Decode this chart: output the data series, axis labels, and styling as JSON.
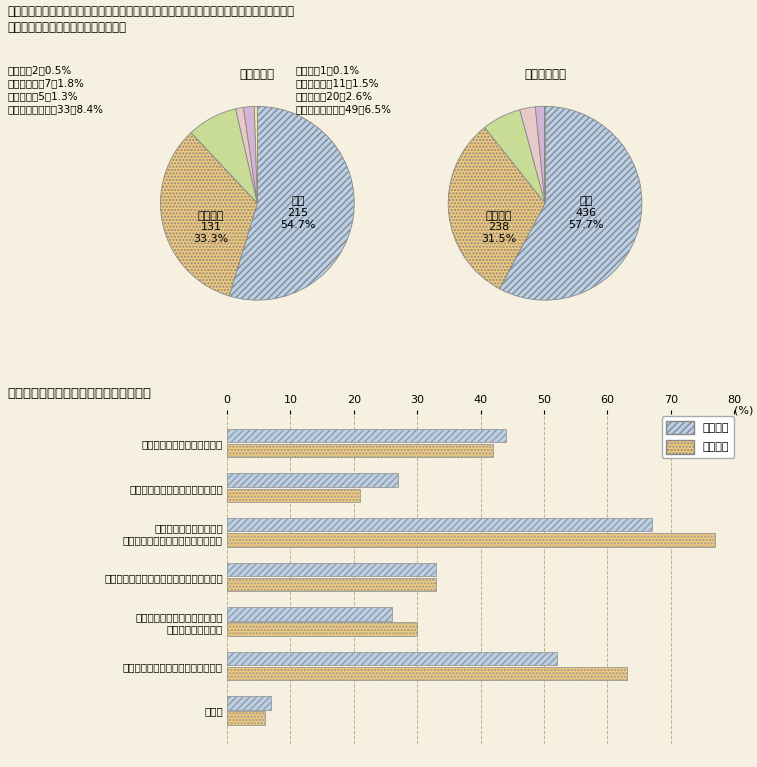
{
  "title_line1": "女性の登用を進めるに当たって、育児休業中の職員及び育児休業から復帰した職員に対して",
  "title_line2": "何らかの配慮が必要だと思いますか。",
  "pie1_title": "（管理職）",
  "pie2_title": "（女性職員）",
  "pie1_values": [
    54.7,
    33.3,
    8.4,
    1.3,
    1.8,
    0.5
  ],
  "pie1_counts": [
    215,
    131,
    33,
    5,
    7,
    2
  ],
  "pie1_pcts": [
    "54.7%",
    "33.3%",
    "8.4%",
    "1.3%",
    "1.8%",
    "0.5%"
  ],
  "pie2_values": [
    57.7,
    31.5,
    6.5,
    2.6,
    1.5,
    0.1
  ],
  "pie2_counts": [
    436,
    238,
    49,
    20,
    11,
    1
  ],
  "pie2_pcts": [
    "57.7%",
    "31.5%",
    "6.5%",
    "2.6%",
    "1.5%",
    "0.1%"
  ],
  "pie_colors": [
    "#b8d0ea",
    "#f0c87a",
    "#c8dc96",
    "#e8c8c8",
    "#d4b4d4",
    "#f0f090"
  ],
  "pie_hatch": [
    "/////",
    ".....",
    "",
    "",
    "",
    ""
  ],
  "bar_title": "どのような配慮が必要だと思いますか。",
  "bar_categories": [
    "育児休業中における情報提供",
    "育児休業から復帰直後の研修実施",
    "家庭生活に配慮した配置\n（短時間勤務制度等の活用を含む）",
    "育児休業取得が昇進に影響しないよう徹底",
    "昇進ルートへの復帰を意識した\n基幹的な業務の付与",
    "能力・成果に基づく人事管理の徹底",
    "その他"
  ],
  "bar_kanri": [
    44,
    27,
    67,
    33,
    26,
    52,
    7
  ],
  "bar_josei": [
    42,
    21,
    77,
    33,
    30,
    63,
    6
  ],
  "bar_xlim": [
    0,
    80
  ],
  "bar_xticks": [
    0,
    10,
    20,
    30,
    40,
    50,
    60,
    70,
    80
  ],
  "bar_xlabel": "(%)",
  "bg_color": "#f5f0e0",
  "bar_color_kanri": "#b8d0ea",
  "bar_color_josei": "#f0c87a",
  "legend_labels": [
    "管理職員",
    "女性職員"
  ],
  "pie_legend_labels": [
    "未回答",
    "分からない",
    "思わない",
    "あまり思わない"
  ],
  "pie1_legend_counts": [
    2,
    7,
    5,
    33
  ],
  "pie1_legend_pcts": [
    "0.5%",
    "1.8%",
    "1.3%",
    "8.4%"
  ],
  "pie2_legend_counts": [
    1,
    11,
    20,
    49
  ],
  "pie2_legend_pcts": [
    "0.1%",
    "1.5%",
    "2.6%",
    "6.5%"
  ]
}
